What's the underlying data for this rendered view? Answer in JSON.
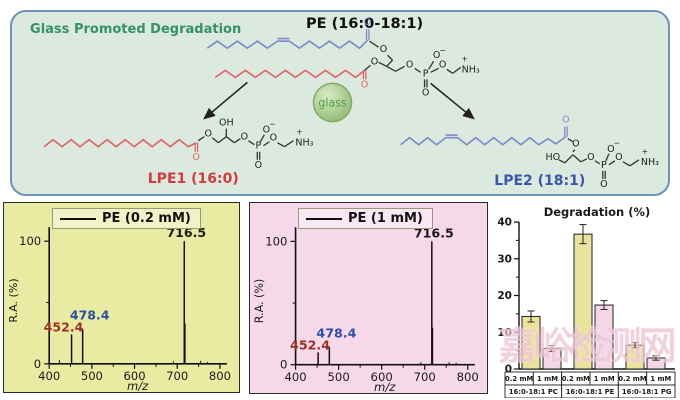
{
  "scheme": {
    "panel_title": "Glass Promoted Degradation",
    "pe_title": "PE (16:0-18:1)",
    "glass_label": "glass",
    "lpe1_label": "LPE1 (16:0)",
    "lpe2_label": "LPE2 (18:1)",
    "atoms": {
      "O": "O",
      "P": "P",
      "OH": "OH",
      "HO": "HO",
      "NH3": "NH₃",
      "plus": "+",
      "minus": "−"
    },
    "colors": {
      "panel_bg": "#dbe9df",
      "panel_border": "#6d92bd",
      "title_green": "#35935f",
      "chain_red": "#e06363",
      "chain_blue": "#8089c6",
      "lpe1_label_color": "#d23c3c",
      "lpe2_label_color": "#3b57ad",
      "glass_fill_light": "#d9edc6",
      "glass_fill_dark": "#8fba72",
      "glass_stroke": "#86a86a",
      "glass_text": "#4f9d52",
      "watermark_color": "#f0c6d8"
    }
  },
  "chart_data": [
    {
      "id": "spectrum_0_2mM",
      "type": "line",
      "subtype": "mass-spectrum",
      "legend": "PE (0.2 mM)",
      "xlabel": "m/z",
      "ylabel": "R.A. (%)",
      "xlim": [
        400,
        800
      ],
      "ylim": [
        0,
        100
      ],
      "xticks": [
        400,
        500,
        600,
        700,
        800
      ],
      "yticks": [
        0,
        100
      ],
      "grid": false,
      "panel_bg": "#e9eba3",
      "peaks": [
        {
          "mz": 452.4,
          "ra": 24,
          "label": "452.4",
          "label_color": "#9e2f28"
        },
        {
          "mz": 478.4,
          "ra": 28,
          "label": "478.4",
          "label_color": "#2d50a7"
        },
        {
          "mz": 716.5,
          "ra": 100,
          "label": "716.5",
          "label_color": "#1a1a1a"
        }
      ],
      "minor_peaks": [
        {
          "mz": 424,
          "ra": 3
        },
        {
          "mz": 691,
          "ra": 2
        },
        {
          "mz": 718.5,
          "ra": 33
        },
        {
          "mz": 755,
          "ra": 2.5
        },
        {
          "mz": 771,
          "ra": 1.5
        }
      ]
    },
    {
      "id": "spectrum_1mM",
      "type": "line",
      "subtype": "mass-spectrum",
      "legend": "PE (1 mM)",
      "xlabel": "m/z",
      "ylabel": "R.A. (%)",
      "xlim": [
        400,
        800
      ],
      "ylim": [
        0,
        100
      ],
      "xticks": [
        400,
        500,
        600,
        700,
        800
      ],
      "yticks": [
        0,
        100
      ],
      "grid": false,
      "panel_bg": "#f6d9e8",
      "peaks": [
        {
          "mz": 452.4,
          "ra": 10,
          "label": "452.4",
          "label_color": "#9e2f28"
        },
        {
          "mz": 478.4,
          "ra": 14,
          "label": "478.4",
          "label_color": "#2d50a7"
        },
        {
          "mz": 716.5,
          "ra": 100,
          "label": "716.5",
          "label_color": "#1a1a1a"
        }
      ],
      "minor_peaks": [
        {
          "mz": 691,
          "ra": 2
        },
        {
          "mz": 718.5,
          "ra": 30
        },
        {
          "mz": 757,
          "ra": 2
        },
        {
          "mz": 773,
          "ra": 1.5
        }
      ]
    },
    {
      "id": "degradation",
      "type": "bar",
      "title": "Degradation (%)",
      "ylim": [
        0,
        40
      ],
      "yticks": [
        0,
        10,
        20,
        30,
        40
      ],
      "grid": false,
      "legend_position": "none",
      "groups": [
        "16:0-18:1 PC",
        "16:0-18:1 PE",
        "16:0-18:1 PG"
      ],
      "series": [
        {
          "name": "0.2 mM",
          "color": "#eae39c",
          "values": [
            14.3,
            36.7,
            6.5
          ],
          "errors": [
            1.5,
            2.6,
            0.7
          ]
        },
        {
          "name": "1 mM",
          "color": "#f3d7e7",
          "values": [
            5.6,
            17.4,
            3.0
          ],
          "errors": [
            0.8,
            1.2,
            0.6
          ]
        }
      ]
    }
  ],
  "watermark": {
    "text": "嘉峪检测网"
  }
}
